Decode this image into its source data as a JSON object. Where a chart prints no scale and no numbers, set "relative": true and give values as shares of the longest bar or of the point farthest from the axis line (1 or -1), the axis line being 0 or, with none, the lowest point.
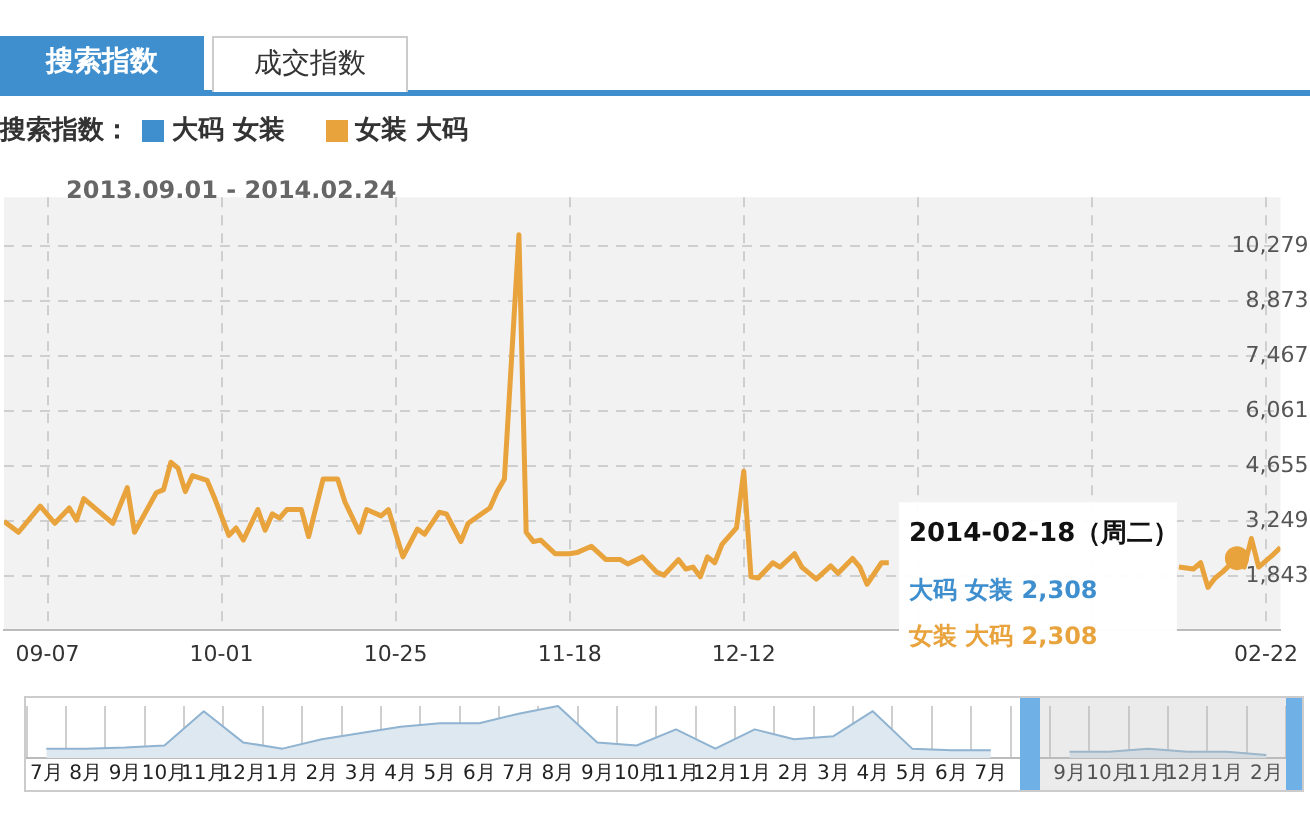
{
  "chart_data": [
    {
      "type": "line",
      "subtitle": "2013.09.01 - 2014.02.24",
      "legend_title": "搜索指数：",
      "legend": "top left",
      "grid": true,
      "marker": "none",
      "annotations": [
        "搜索指数",
        "成交指数",
        {
          "text": "2014-02-18（周二）",
          "x": "2014-02-18",
          "y": 2308
        },
        "大码 女装 2,308",
        "女装 大码 2,308"
      ],
      "xlim": [
        "2013-09-01",
        "2014-02-24"
      ],
      "xticks": [
        {
          "value": "2013-09-07",
          "label": "09-07"
        },
        {
          "value": "2013-10-01",
          "label": "10-01"
        },
        {
          "value": "2013-10-25",
          "label": "10-25"
        },
        {
          "value": "2013-11-18",
          "label": "11-18"
        },
        {
          "value": "2013-12-12",
          "label": "12-12"
        },
        {
          "value": "2014-01-05",
          "label": null
        },
        {
          "value": "2014-01-29",
          "label": null
        },
        {
          "value": "2014-02-22",
          "label": "02-22"
        }
      ],
      "ylim": [
        480,
        11540
      ],
      "yticks": [
        {
          "value": 1843,
          "label": "1,843"
        },
        {
          "value": 3249,
          "label": "3,249"
        },
        {
          "value": 4655,
          "label": "4,655"
        },
        {
          "value": 6061,
          "label": "6,061"
        },
        {
          "value": 7467,
          "label": "7,467"
        },
        {
          "value": 8873,
          "label": "8,873"
        },
        {
          "value": 10279,
          "label": "10,279"
        }
      ],
      "x": [
        "2013-09-01",
        "2013-09-03",
        "2013-09-06",
        "2013-09-08",
        "2013-09-10",
        "2013-09-11",
        "2013-09-12",
        "2013-09-16",
        "2013-09-18",
        "2013-09-19",
        "2013-09-22",
        "2013-09-23",
        "2013-09-24",
        "2013-09-25",
        "2013-09-26",
        "2013-09-27",
        "2013-09-29",
        "2013-09-30",
        "2013-10-02",
        "2013-10-03",
        "2013-10-04",
        "2013-10-06",
        "2013-10-07",
        "2013-10-08",
        "2013-10-09",
        "2013-10-10",
        "2013-10-12",
        "2013-10-13",
        "2013-10-15",
        "2013-10-17",
        "2013-10-18",
        "2013-10-20",
        "2013-10-21",
        "2013-10-23",
        "2013-10-24",
        "2013-10-26",
        "2013-10-28",
        "2013-10-29",
        "2013-10-31",
        "2013-11-01",
        "2013-11-03",
        "2013-11-04",
        "2013-11-07",
        "2013-11-08",
        "2013-11-09",
        "2013-11-11",
        "2013-11-12",
        "2013-11-13",
        "2013-11-14",
        "2013-11-16",
        "2013-11-18",
        "2013-11-19",
        "2013-11-21",
        "2013-11-23",
        "2013-11-25",
        "2013-11-26",
        "2013-11-28",
        "2013-11-30",
        "2013-12-01",
        "2013-12-03",
        "2013-12-04",
        "2013-12-05",
        "2013-12-06",
        "2013-12-07",
        "2013-12-08",
        "2013-12-09",
        "2013-12-11",
        "2013-12-12",
        "2013-12-13",
        "2013-12-14",
        "2013-12-16",
        "2013-12-17",
        "2013-12-19",
        "2013-12-20",
        "2013-12-22",
        "2013-12-24",
        "2013-12-25",
        "2013-12-27",
        "2013-12-28",
        "2013-12-29",
        "2013-12-31",
        "2014-01-01",
        "2014-01-20",
        "2014-02-10",
        "2014-02-12",
        "2014-02-13",
        "2014-02-14",
        "2014-02-15",
        "2014-02-16",
        "2014-02-18",
        "2014-02-19",
        "2014-02-20",
        "2014-02-21",
        "2014-02-23",
        "2014-02-24"
      ],
      "series": [
        {
          "name": "大码 女装",
          "color": "#3f8fcf",
          "values": [
            null,
            null,
            null,
            null,
            null,
            null,
            null,
            null,
            null,
            null,
            null,
            null,
            null,
            null,
            null,
            null,
            null,
            null,
            null,
            null,
            null,
            null,
            null,
            null,
            null,
            null,
            null,
            null,
            null,
            null,
            null,
            null,
            null,
            null,
            null,
            null,
            null,
            null,
            null,
            null,
            null,
            null,
            null,
            null,
            null,
            null,
            null,
            null,
            null,
            null,
            null,
            null,
            null,
            null,
            null,
            null,
            null,
            null,
            null,
            null,
            null,
            null,
            null,
            null,
            null,
            null,
            null,
            null,
            null,
            null,
            null,
            null,
            null,
            null,
            null,
            null,
            null,
            null,
            null,
            null,
            null,
            null,
            null,
            null,
            null,
            null,
            null,
            null,
            null,
            null,
            null,
            null,
            null,
            null,
            null
          ]
        },
        {
          "name": "女装 大码",
          "color": "#e8a33d",
          "values": [
            3250,
            2970,
            3640,
            3200,
            3590,
            3280,
            3830,
            3200,
            4110,
            2970,
            3980,
            4060,
            4760,
            4610,
            4010,
            4420,
            4300,
            3860,
            2890,
            3080,
            2770,
            3550,
            3020,
            3440,
            3330,
            3550,
            3550,
            2860,
            4330,
            4330,
            3750,
            2970,
            3550,
            3390,
            3550,
            2340,
            3050,
            2920,
            3480,
            3440,
            2730,
            3200,
            3590,
            4010,
            4330,
            10580,
            2970,
            2730,
            2770,
            2420,
            2420,
            2450,
            2610,
            2270,
            2270,
            2160,
            2340,
            1950,
            1870,
            2270,
            2030,
            2080,
            1830,
            2340,
            2190,
            2660,
            3080,
            4530,
            1830,
            1800,
            2190,
            2080,
            2420,
            2080,
            1770,
            2110,
            1920,
            2300,
            2080,
            1640,
            2190,
            2190,
            null,
            2080,
            2030,
            2190,
            1560,
            1800,
            1950,
            2308,
            2080,
            2810,
            2080,
            2400,
            2580
          ]
        }
      ]
    },
    {
      "type": "area",
      "relative": true,
      "grid": "x",
      "marker": "none",
      "categories": [
        "7月",
        "8月",
        "9月",
        "10月",
        "11月",
        "12月",
        "1月",
        "2月",
        "3月",
        "4月",
        "5月",
        "6月",
        "7月",
        "8月",
        "9月",
        "10月",
        "11月",
        "12月",
        "1月",
        "2月",
        "3月",
        "4月",
        "5月",
        "6月",
        "7月",
        null,
        "9月",
        "10月",
        "11月",
        "12月",
        "1月",
        "2月"
      ],
      "color": "#8fb3d0",
      "values": [
        0.18,
        0.18,
        0.2,
        0.24,
        0.9,
        0.3,
        0.18,
        0.36,
        0.48,
        0.6,
        0.67,
        0.67,
        0.85,
        1,
        0.3,
        0.24,
        0.55,
        0.18,
        0.55,
        0.36,
        0.42,
        0.9,
        0.18,
        0.15,
        0.15,
        null,
        0.12,
        0.12,
        0.18,
        0.12,
        0.12,
        0.06
      ]
    }
  ]
}
